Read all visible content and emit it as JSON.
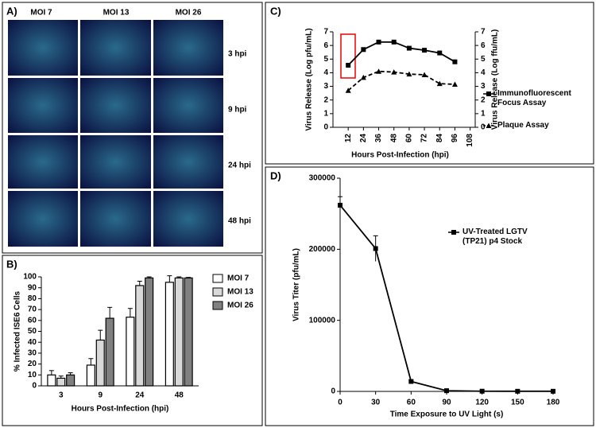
{
  "panel_a": {
    "panel_label": "A)",
    "columns": [
      "MOI 7",
      "MOI 13",
      "MOI 26"
    ],
    "rows": [
      "3 hpi",
      "9 hpi",
      "24 hpi",
      "48 hpi"
    ]
  },
  "chart_data": [
    {
      "type": "bar",
      "panel_label": "B)",
      "ylabel": "% Infected ISE6 Cells",
      "xlabel": "Hours Post-Infection (hpi)",
      "categories": [
        "3",
        "9",
        "24",
        "48"
      ],
      "series": [
        {
          "name": "MOI 7",
          "color": "#ffffff",
          "values": [
            10,
            19,
            63,
            95
          ],
          "errors": [
            4,
            6,
            8,
            6
          ]
        },
        {
          "name": "MOI 13",
          "color": "#d9d9d9",
          "values": [
            7,
            42,
            92,
            99
          ],
          "errors": [
            2,
            9,
            4,
            1
          ]
        },
        {
          "name": "MOI 26",
          "color": "#808080",
          "values": [
            10,
            62,
            99,
            99
          ],
          "errors": [
            2,
            10,
            1,
            0.5
          ]
        }
      ],
      "ylim": [
        0,
        100
      ],
      "yticks": [
        0,
        10,
        20,
        30,
        40,
        50,
        60,
        70,
        80,
        90,
        100
      ]
    },
    {
      "type": "line",
      "panel_label": "C)",
      "ylabel": "Virus Release (Log pfu/mL)",
      "y2label": "Virus Release (Log ffu/mL)",
      "xlabel": "Hours Post-Infection (hpi)",
      "x": [
        12,
        24,
        36,
        48,
        60,
        72,
        84,
        96
      ],
      "series": [
        {
          "name": "Immunofluorescent Focus  Assay",
          "color": "#000000",
          "marker": "square",
          "dash": false,
          "axis": "y2",
          "values": [
            4.55,
            5.7,
            6.25,
            6.25,
            5.8,
            5.65,
            5.45,
            4.8
          ]
        },
        {
          "name": "Plaque Assay",
          "color": "#000000",
          "marker": "triangle",
          "dash": true,
          "values": [
            2.7,
            3.65,
            4.1,
            4.05,
            3.9,
            3.85,
            3.2,
            3.15
          ]
        }
      ],
      "xlim": [
        0,
        112
      ],
      "xticks": [
        12,
        24,
        36,
        48,
        60,
        72,
        84,
        96,
        108
      ],
      "ylim": [
        0,
        7
      ],
      "yticks": [
        0,
        1,
        2,
        3,
        4,
        5,
        6,
        7
      ],
      "y2lim": [
        0,
        7
      ],
      "y2ticks": [
        0,
        1,
        2,
        3,
        4,
        5,
        6,
        7
      ]
    },
    {
      "type": "line",
      "panel_label": "D)",
      "ylabel": "Virus Titer (pfu/mL)",
      "xlabel": "Time Exposure to UV Light (s)",
      "x": [
        0,
        30,
        60,
        90,
        120,
        150,
        180
      ],
      "series": [
        {
          "name": "UV-Treated LGTV (TP21) p4 Stock",
          "color": "#000000",
          "marker": "square",
          "dash": false,
          "values": [
            262000,
            201000,
            14000,
            1000,
            300,
            200,
            200
          ],
          "errors": [
            12000,
            18000,
            1500,
            500,
            0,
            0,
            0
          ]
        }
      ],
      "xlim": [
        0,
        180
      ],
      "xticks": [
        0,
        30,
        60,
        90,
        120,
        150,
        180
      ],
      "ylim": [
        0,
        300000
      ],
      "yticks": [
        0,
        100000,
        200000,
        300000
      ]
    }
  ]
}
